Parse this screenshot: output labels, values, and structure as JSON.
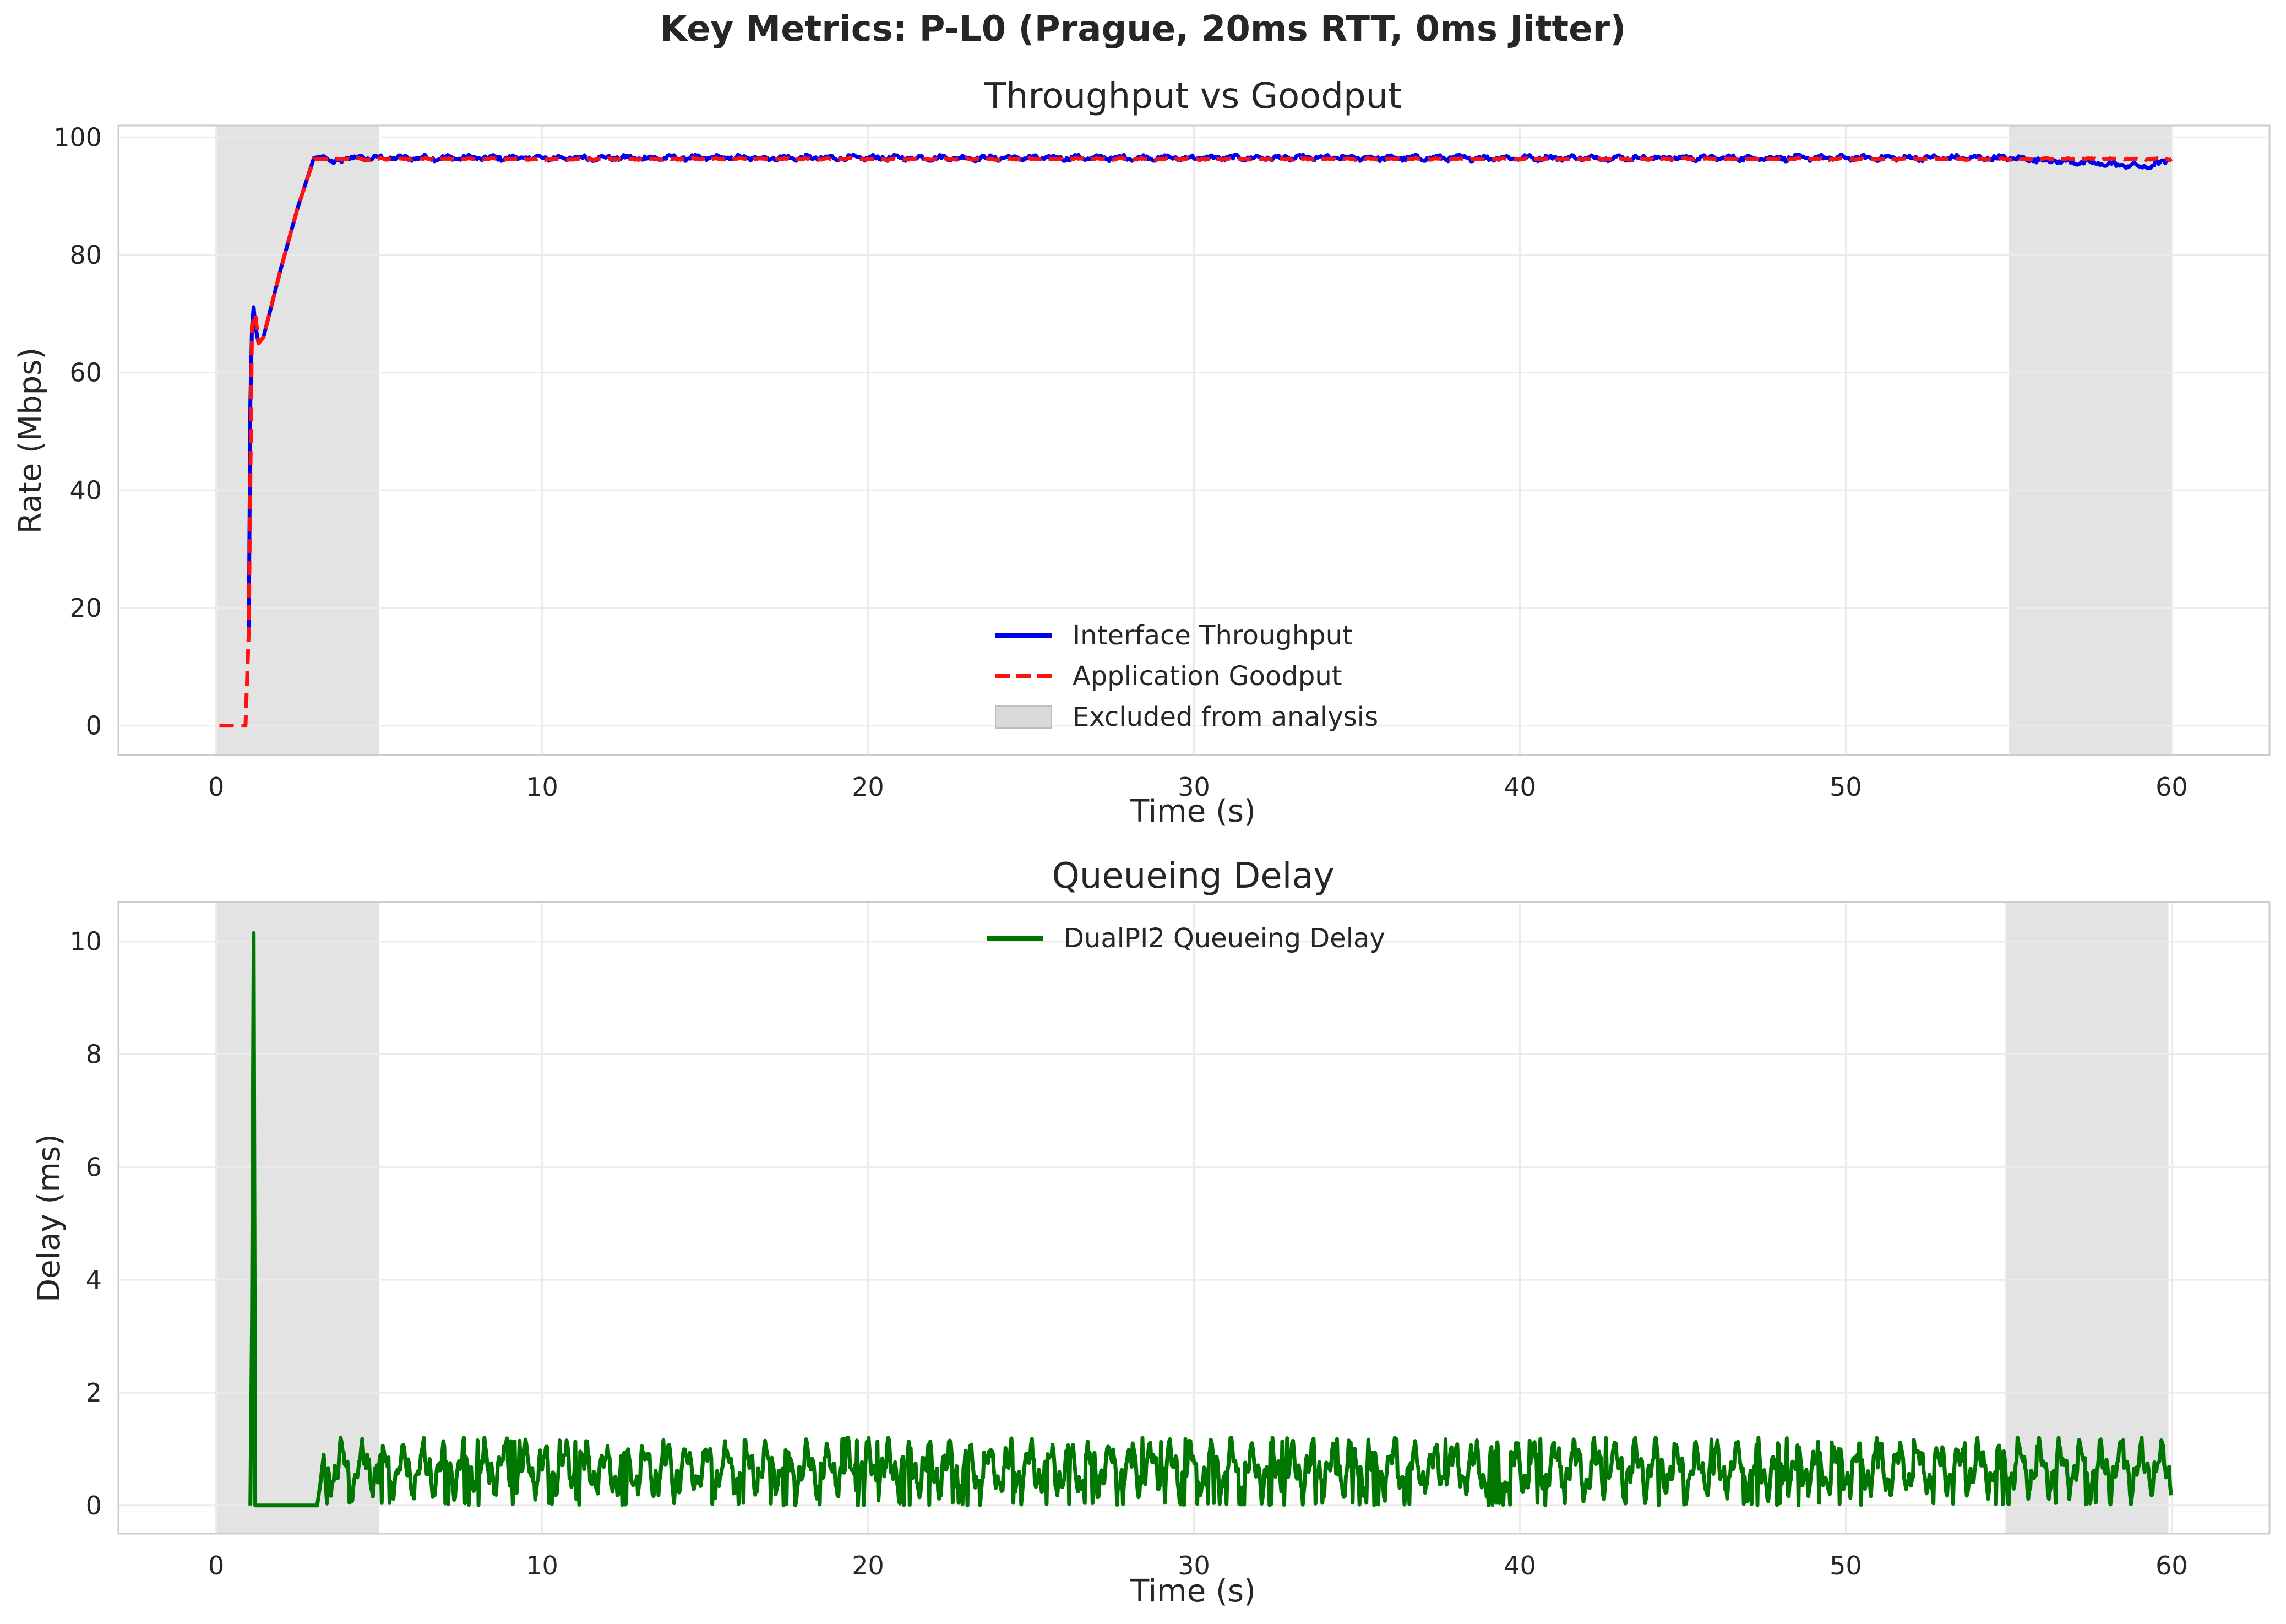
{
  "figure": {
    "suptitle": "Key Metrics: P-L0 (Prague, 20ms RTT, 0ms Jitter)"
  },
  "colors": {
    "throughput": "#0000ee",
    "goodput": "#ff1111",
    "delay": "#007700",
    "excluded": "#d9d9d9",
    "grid": "#ebebeb",
    "frame": "#cccccc"
  },
  "chart_data": [
    {
      "type": "line",
      "title": "Throughput vs Goodput",
      "xlabel": "Time (s)",
      "ylabel": "Rate (Mbps)",
      "xlim": [
        -3,
        63
      ],
      "ylim": [
        -5,
        102
      ],
      "xticks": [
        0,
        10,
        20,
        30,
        40,
        50,
        60
      ],
      "yticks": [
        0,
        20,
        40,
        60,
        80,
        100
      ],
      "grid": true,
      "legend_position": "lower-center",
      "excluded_regions": [
        [
          0,
          5
        ],
        [
          55,
          60
        ]
      ],
      "excluded_label": "Excluded from analysis",
      "series": [
        {
          "name": "Interface Throughput",
          "style": "solid",
          "color": "#0000ee",
          "x": [
            1.0,
            1.05,
            1.12,
            1.2,
            1.3,
            1.45,
            2.0,
            2.5,
            3.0,
            3.3,
            3.6,
            4.0,
            5.0,
            10,
            15,
            20,
            25,
            30,
            35,
            40,
            45,
            50,
            55,
            59.3,
            60.0
          ],
          "y": [
            16,
            55,
            73,
            68,
            65,
            66,
            78,
            88,
            96.5,
            96.8,
            95.5,
            96.5,
            96.5,
            96.5,
            96.5,
            96.5,
            96.5,
            96.5,
            96.5,
            96.5,
            96.5,
            96.5,
            96.5,
            95,
            96.3
          ],
          "noise_amplitude": 0.7
        },
        {
          "name": "Application Goodput",
          "style": "dashed",
          "color": "#ff1111",
          "x": [
            0.1,
            0.9,
            1.0,
            1.1,
            1.2,
            1.3,
            1.45,
            2.0,
            2.5,
            3.0,
            3.5,
            5.0,
            10,
            20,
            30,
            40,
            50,
            55,
            60.0
          ],
          "y": [
            0,
            0,
            16,
            68,
            70,
            65,
            66,
            78,
            88,
            96.3,
            96.3,
            96.3,
            96.3,
            96.3,
            96.3,
            96.3,
            96.3,
            96.3,
            96.3
          ],
          "noise_amplitude": 0.2
        }
      ]
    },
    {
      "type": "line",
      "title": "Queueing Delay",
      "xlabel": "Time (s)",
      "ylabel": "Delay (ms)",
      "xlim": [
        -3,
        63
      ],
      "ylim": [
        -0.5,
        10.7
      ],
      "xticks": [
        0,
        10,
        20,
        30,
        40,
        50,
        60
      ],
      "yticks": [
        0,
        2,
        4,
        6,
        8,
        10
      ],
      "grid": true,
      "legend_position": "upper-center",
      "excluded_regions": [
        [
          0,
          5
        ],
        [
          54.9,
          59.9
        ]
      ],
      "series": [
        {
          "name": "DualPI2 Queueing Delay",
          "style": "solid",
          "color": "#007700",
          "x": [
            1.05,
            1.1,
            1.15,
            1.2,
            3.1,
            3.2,
            3.3,
            3.4,
            60.0
          ],
          "y": [
            0,
            3.3,
            10.15,
            0,
            0,
            0.4,
            0.9,
            1.0,
            0.6
          ],
          "oscillation": {
            "start": 3.4,
            "end": 60.0,
            "min": 0.0,
            "max": 1.2,
            "mean": 0.65
          }
        }
      ]
    }
  ]
}
